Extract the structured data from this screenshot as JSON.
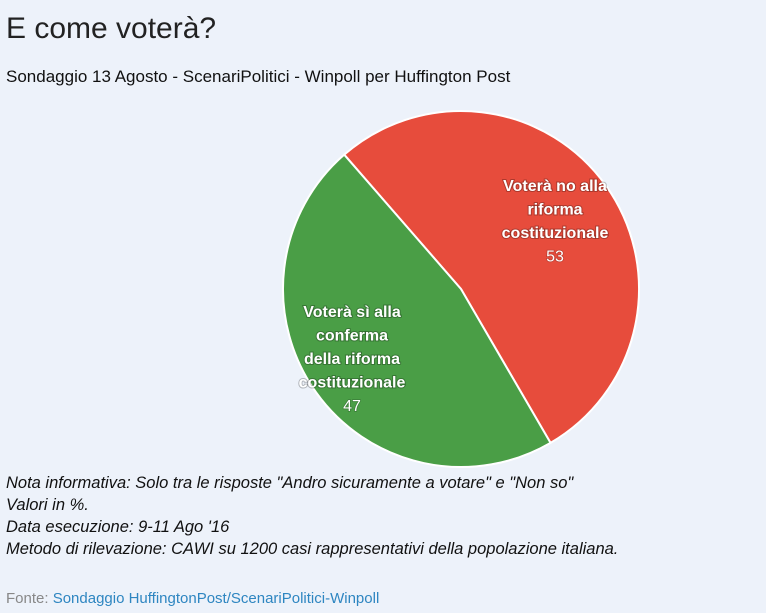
{
  "title": "E come voterà?",
  "subtitle": "Sondaggio 13 Agosto - ScenariPolitici - Winpoll per Huffington Post",
  "chart_data": {
    "type": "pie",
    "title": "E come voterà?",
    "subtitle": "Sondaggio 13 Agosto - ScenariPolitici - Winpoll per Huffington Post",
    "slices": [
      {
        "label": [
          "Voterà no alla",
          "riforma",
          "costituzionale"
        ],
        "value": 53,
        "color": "#e74c3c"
      },
      {
        "label": [
          "Voterà sì alla",
          "conferma",
          "della riforma",
          "costituzionale"
        ],
        "value": 47,
        "color": "#4a9e46"
      }
    ]
  },
  "notes": [
    "Nota informativa: Solo tra le risposte \"Andro sicuramente a votare\" e \"Non so\"",
    "Valori in %.",
    "Data esecuzione: 9-11 Ago '16",
    "Metodo di rilevazione: CAWI su 1200 casi rappresentativi della popolazione italiana."
  ],
  "source": {
    "prefix": "Fonte:",
    "link_text": "Sondaggio HuffingtonPost/ScenariPolitici-Winpoll"
  }
}
